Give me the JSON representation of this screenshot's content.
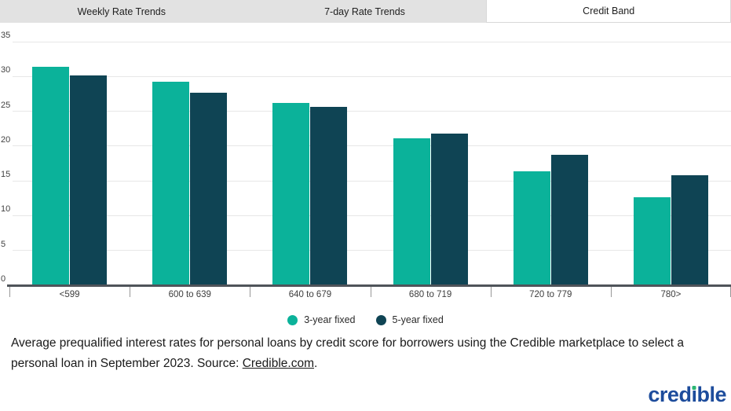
{
  "tabs": {
    "items": [
      {
        "label": "Weekly Rate Trends",
        "active": false
      },
      {
        "label": "7-day Rate Trends",
        "active": false
      },
      {
        "label": "Credit Band",
        "active": true
      }
    ]
  },
  "chart_data": {
    "type": "bar",
    "title": "",
    "xlabel": "",
    "ylabel": "",
    "categories": [
      "<599",
      "600 to 639",
      "640 to 679",
      "680 to 719",
      "720 to 779",
      "780>"
    ],
    "series": [
      {
        "name": "3-year fixed",
        "color": "#0bb29a",
        "values": [
          31.4,
          29.3,
          26.2,
          21.1,
          16.4,
          12.7
        ]
      },
      {
        "name": "5-year fixed",
        "color": "#0f4454",
        "values": [
          30.1,
          27.7,
          25.6,
          21.8,
          18.8,
          15.8
        ]
      }
    ],
    "ylim": [
      0,
      35
    ],
    "yticks": [
      0,
      5,
      10,
      15,
      20,
      25,
      30,
      35
    ],
    "grid": true,
    "legend_position": "bottom"
  },
  "caption": {
    "before_link": "Average prequalified interest rates for personal loans by credit score for borrowers using the Credible marketplace to select a personal loan in September 2023. Source: ",
    "link": "Credible.com",
    "after_link": "."
  },
  "logo": {
    "text": "credible",
    "brand_blue": "#1d4c9c",
    "dot_green": "#2bb673"
  },
  "colors": {
    "tab_bar_bg": "#e2e2e2",
    "active_tab_bg": "#ffffff",
    "gridline": "#e7e7e7",
    "axis": "#4f545a",
    "series_teal": "#0bb29a",
    "series_dark_teal": "#0f4454"
  }
}
